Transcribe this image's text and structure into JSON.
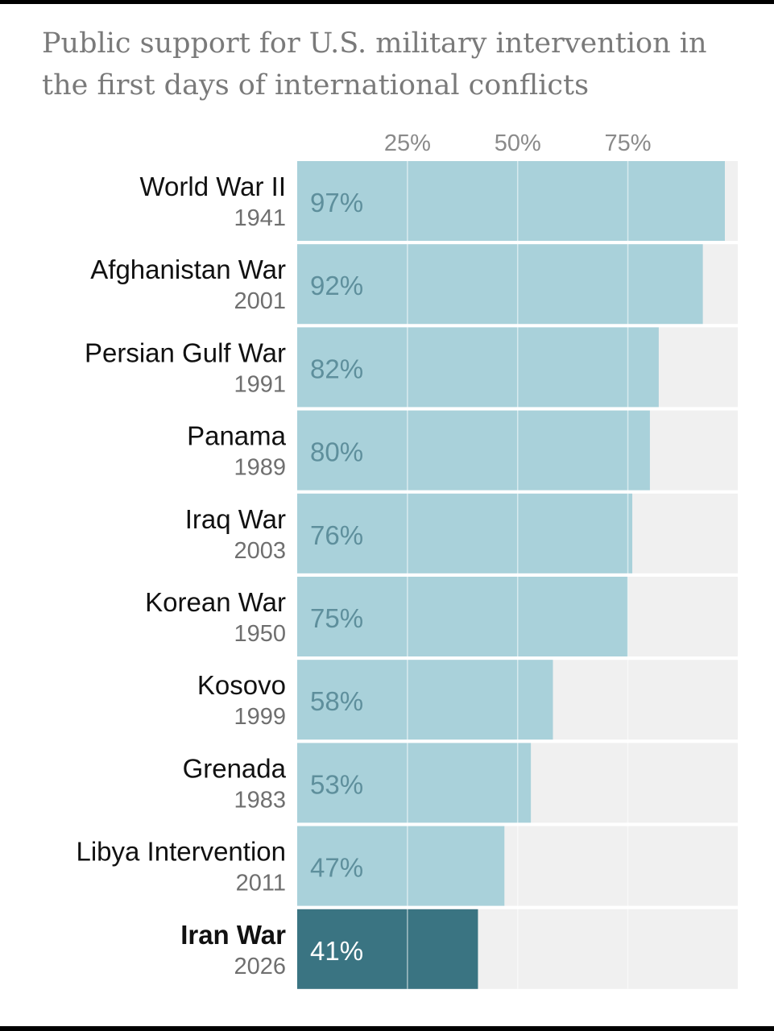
{
  "chart_data": {
    "type": "bar",
    "orientation": "horizontal",
    "title": "Public support for U.S. military intervention in the first days of international conflicts",
    "xlabel": "",
    "ylabel": "",
    "xlim": [
      0,
      100
    ],
    "ticks": [
      {
        "value": 25,
        "label": "25%"
      },
      {
        "value": 50,
        "label": "50%"
      },
      {
        "value": 75,
        "label": "75%"
      }
    ],
    "categories": [
      {
        "name": "World War II",
        "year": "1941",
        "value": 97,
        "label": "97%"
      },
      {
        "name": "Afghanistan War",
        "year": "2001",
        "value": 92,
        "label": "92%"
      },
      {
        "name": "Persian Gulf War",
        "year": "1991",
        "value": 82,
        "label": "82%"
      },
      {
        "name": "Panama",
        "year": "1989",
        "value": 80,
        "label": "80%"
      },
      {
        "name": "Iraq War",
        "year": "2003",
        "value": 76,
        "label": "76%"
      },
      {
        "name": "Korean War",
        "year": "1950",
        "value": 75,
        "label": "75%"
      },
      {
        "name": "Kosovo",
        "year": "1999",
        "value": 58,
        "label": "58%"
      },
      {
        "name": "Grenada",
        "year": "1983",
        "value": 53,
        "label": "53%"
      },
      {
        "name": "Libya Intervention",
        "year": "2011",
        "value": 47,
        "label": "47%"
      },
      {
        "name": "Iran War",
        "year": "2026",
        "value": 41,
        "label": "41%",
        "highlight": true
      }
    ],
    "colors": {
      "bar": "#a9d1da",
      "highlight_bar": "#3a7482",
      "track": "#f0f0f0",
      "gridline": "#ffffff"
    }
  }
}
